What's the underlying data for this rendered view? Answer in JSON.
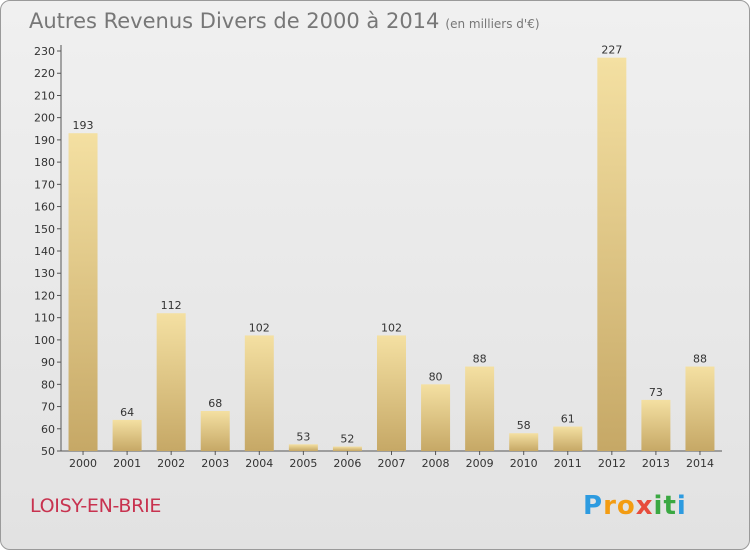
{
  "title": "Autres Revenus Divers de 2000 à 2014",
  "unit": "(en milliers d'€)",
  "commune": "LOISY-EN-BRIE",
  "logo": {
    "letters": [
      "P",
      "r",
      "o",
      "x",
      "i",
      "t",
      "i"
    ],
    "colors": [
      "#2d9be0",
      "#f39c12",
      "#f39c12",
      "#e74c3c",
      "#3aa842",
      "#3aa842",
      "#2d9be0"
    ]
  },
  "colors": {
    "bar_light": "#f4e0a2",
    "bar_dark": "#c6a866",
    "axis": "#555555"
  },
  "chart_data": {
    "type": "bar",
    "categories": [
      "2000",
      "2001",
      "2002",
      "2003",
      "2004",
      "2005",
      "2006",
      "2007",
      "2008",
      "2009",
      "2010",
      "2011",
      "2012",
      "2013",
      "2014"
    ],
    "values": [
      193,
      64,
      112,
      68,
      102,
      53,
      52,
      102,
      80,
      88,
      58,
      61,
      227,
      73,
      88
    ],
    "ylim": [
      50,
      230
    ],
    "yticks": [
      50,
      60,
      70,
      80,
      90,
      100,
      110,
      120,
      130,
      140,
      150,
      160,
      170,
      180,
      190,
      200,
      210,
      220,
      230
    ],
    "grid": false,
    "legend": "none"
  }
}
